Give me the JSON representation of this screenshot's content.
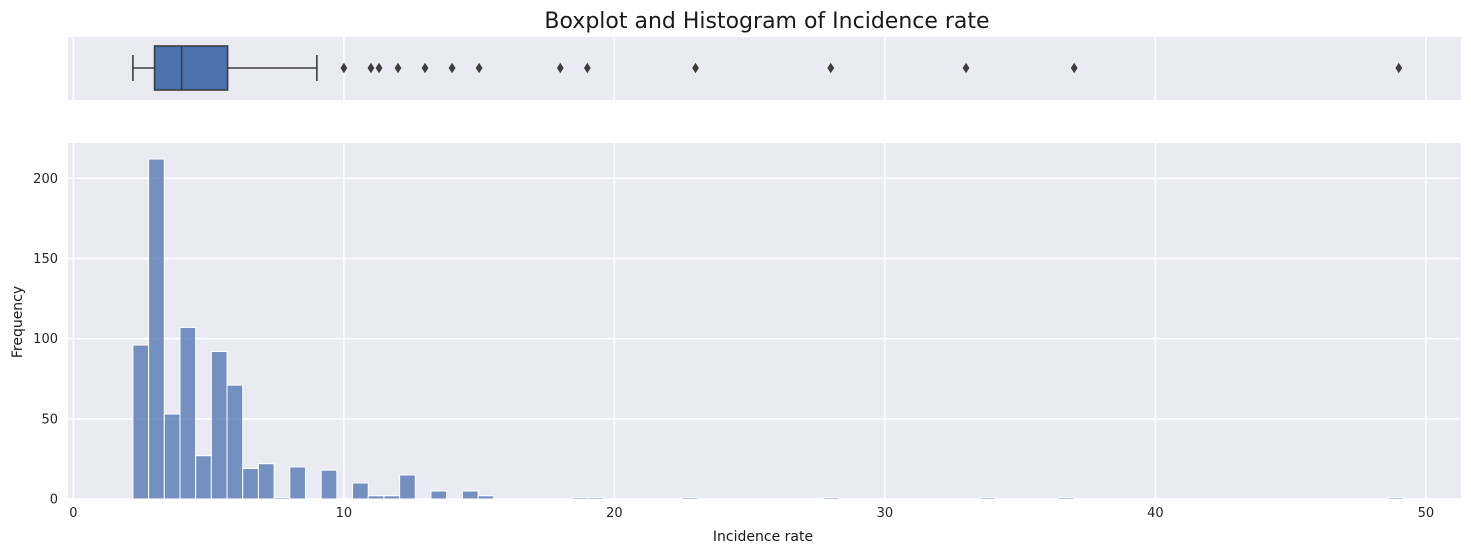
{
  "chart_data": [
    {
      "type": "boxplot",
      "title": "Boxplot and Histogram of Incidence rate",
      "xlim": [
        -0.2,
        51.3
      ],
      "color": "#4c72b0",
      "box": {
        "whisker_low": 2.2,
        "q1": 3.0,
        "median": 4.0,
        "q3": 5.7,
        "whisker_high": 9.0
      },
      "outliers": [
        10,
        11,
        11.3,
        12,
        13,
        14,
        15,
        18,
        19,
        23,
        28,
        33,
        37,
        49
      ],
      "grid": true
    },
    {
      "type": "bar",
      "subtype": "histogram",
      "xlabel": "Incidence rate",
      "ylabel": "Frequency",
      "xlim": [
        -0.2,
        51.3
      ],
      "ylim": [
        0,
        222
      ],
      "xticks": [
        0,
        10,
        20,
        30,
        40,
        50
      ],
      "yticks": [
        0,
        50,
        100,
        150,
        200
      ],
      "color": "#4c72b0",
      "grid": true,
      "bin_width": 0.58,
      "bins": [
        {
          "x": 2.2,
          "count": 96
        },
        {
          "x": 2.78,
          "count": 212
        },
        {
          "x": 3.36,
          "count": 53
        },
        {
          "x": 3.94,
          "count": 107
        },
        {
          "x": 4.52,
          "count": 27
        },
        {
          "x": 5.1,
          "count": 92
        },
        {
          "x": 5.68,
          "count": 71
        },
        {
          "x": 6.26,
          "count": 19
        },
        {
          "x": 6.84,
          "count": 22
        },
        {
          "x": 7.42,
          "count": 1
        },
        {
          "x": 8.0,
          "count": 20
        },
        {
          "x": 9.16,
          "count": 18
        },
        {
          "x": 10.32,
          "count": 10
        },
        {
          "x": 10.9,
          "count": 2
        },
        {
          "x": 11.48,
          "count": 2
        },
        {
          "x": 12.06,
          "count": 15
        },
        {
          "x": 13.22,
          "count": 5
        },
        {
          "x": 14.38,
          "count": 5
        },
        {
          "x": 14.96,
          "count": 2
        },
        {
          "x": 18.44,
          "count": 1
        },
        {
          "x": 19.02,
          "count": 1
        },
        {
          "x": 22.5,
          "count": 1
        },
        {
          "x": 27.72,
          "count": 1
        },
        {
          "x": 33.52,
          "count": 1
        },
        {
          "x": 36.42,
          "count": 1
        },
        {
          "x": 48.6,
          "count": 1
        }
      ]
    }
  ]
}
